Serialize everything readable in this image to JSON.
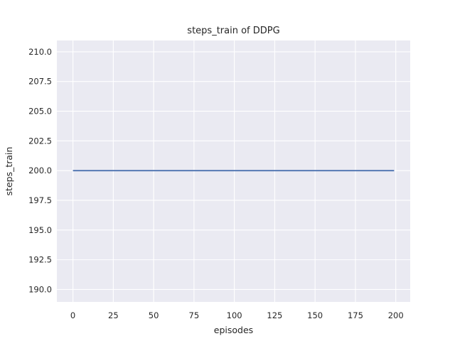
{
  "figure": {
    "background": "#ffffff"
  },
  "chart_data": {
    "type": "line",
    "title": "steps_train of DDPG",
    "xlabel": "episodes",
    "ylabel": "steps_train",
    "xlim": [
      -9.95,
      208.95
    ],
    "ylim": [
      188.95,
      210.95
    ],
    "xticks": [
      0,
      25,
      50,
      75,
      100,
      125,
      150,
      175,
      200
    ],
    "xticklabels": [
      "0",
      "25",
      "50",
      "75",
      "100",
      "125",
      "150",
      "175",
      "200"
    ],
    "yticks": [
      190.0,
      192.5,
      195.0,
      197.5,
      200.0,
      202.5,
      205.0,
      207.5,
      210.0
    ],
    "yticklabels": [
      "190.0",
      "192.5",
      "195.0",
      "197.5",
      "200.0",
      "202.5",
      "205.0",
      "207.5",
      "210.0"
    ],
    "grid": true,
    "legend": false,
    "style": {
      "axes_background": "#eaeaf2",
      "grid_color": "#ffffff",
      "text_color": "#262626",
      "line_color": "#4c72b0",
      "line_width": 1.8
    },
    "series": [
      {
        "name": "steps_train",
        "x": [
          0,
          199
        ],
        "y": [
          200,
          200
        ]
      }
    ]
  }
}
